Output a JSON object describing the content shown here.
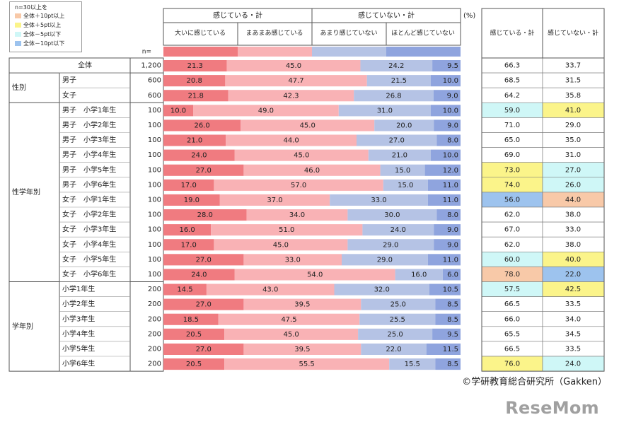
{
  "legend": {
    "title": "n=30以上を",
    "items": [
      {
        "label": "全体＋10pt以上",
        "color": "#f8c9a8"
      },
      {
        "label": "全体＋5pt以上",
        "color": "#fbf48a"
      },
      {
        "label": "全体－5pt以下",
        "color": "#cff7f7"
      },
      {
        "label": "全体－10pt以下",
        "color": "#9dc3ee"
      }
    ]
  },
  "header": {
    "feel_total": "感じている・計",
    "notfeel_total": "感じていない・計",
    "cat1": "大いに感じている",
    "cat2": "まあまあ感じている",
    "cat3": "あまり感じていない",
    "cat4": "ほとんど感じていない",
    "unit": "(%)",
    "n_label": "n=",
    "sum_feel": "感じている・計",
    "sum_notfeel": "感じていない・計"
  },
  "groups": [
    "性別",
    "性学年別",
    "学年別"
  ],
  "colors": {
    "cat1": "#f07b80",
    "cat2": "#f9b2b5",
    "cat3": "#b5c3e5",
    "cat4": "#8fa4de",
    "highlight_plus10": "#f8c9a8",
    "highlight_plus5": "#fbf48a",
    "highlight_minus5": "#cff7f7",
    "highlight_minus10": "#9dc3ee"
  },
  "chart_data": {
    "type": "bar",
    "stacked": true,
    "orientation": "horizontal",
    "unit": "(%)",
    "categories": [
      "全体",
      "男子",
      "女子",
      "男子　小学1年生",
      "男子　小学2年生",
      "男子　小学3年生",
      "男子　小学4年生",
      "男子　小学5年生",
      "男子　小学6年生",
      "女子　小学1年生",
      "女子　小学2年生",
      "女子　小学3年生",
      "女子　小学4年生",
      "女子　小学5年生",
      "女子　小学6年生",
      "小学1年生",
      "小学2年生",
      "小学3年生",
      "小学4年生",
      "小学5年生",
      "小学6年生"
    ],
    "n": [
      "1,200",
      "600",
      "600",
      "100",
      "100",
      "100",
      "100",
      "100",
      "100",
      "100",
      "100",
      "100",
      "100",
      "100",
      "100",
      "200",
      "200",
      "200",
      "200",
      "200",
      "200"
    ],
    "series": [
      {
        "name": "大いに感じている",
        "values": [
          21.3,
          20.8,
          21.8,
          10.0,
          26.0,
          21.0,
          24.0,
          27.0,
          17.0,
          19.0,
          28.0,
          16.0,
          17.0,
          27.0,
          24.0,
          14.5,
          27.0,
          18.5,
          20.5,
          27.0,
          20.5
        ]
      },
      {
        "name": "まあまあ感じている",
        "values": [
          45.0,
          47.7,
          42.3,
          49.0,
          45.0,
          44.0,
          45.0,
          46.0,
          57.0,
          37.0,
          34.0,
          51.0,
          45.0,
          33.0,
          54.0,
          43.0,
          39.5,
          47.5,
          45.0,
          39.5,
          55.5
        ]
      },
      {
        "name": "あまり感じていない",
        "values": [
          24.2,
          21.5,
          26.8,
          31.0,
          20.0,
          27.0,
          21.0,
          15.0,
          15.0,
          33.0,
          30.0,
          24.0,
          29.0,
          29.0,
          16.0,
          32.0,
          25.0,
          25.5,
          25.0,
          22.0,
          15.5
        ]
      },
      {
        "name": "ほとんど感じていない",
        "values": [
          9.5,
          10.0,
          9.0,
          10.0,
          9.0,
          8.0,
          10.0,
          12.0,
          11.0,
          11.0,
          8.0,
          9.0,
          9.0,
          11.0,
          6.0,
          10.5,
          8.5,
          8.5,
          9.5,
          11.5,
          8.5
        ]
      }
    ],
    "feel_total": [
      66.3,
      68.5,
      64.2,
      59.0,
      71.0,
      65.0,
      69.0,
      73.0,
      74.0,
      56.0,
      62.0,
      67.0,
      62.0,
      60.0,
      78.0,
      57.5,
      66.5,
      66.0,
      65.5,
      66.5,
      76.0
    ],
    "notfeel_total": [
      33.7,
      31.5,
      35.8,
      41.0,
      29.0,
      35.0,
      31.0,
      27.0,
      26.0,
      44.0,
      38.0,
      33.0,
      38.0,
      40.0,
      22.0,
      42.5,
      33.5,
      34.0,
      34.5,
      33.5,
      24.0
    ],
    "feel_highlight": [
      "",
      "",
      "",
      "minus5",
      "",
      "",
      "",
      "plus5",
      "plus5",
      "minus10",
      "",
      "",
      "",
      "minus5",
      "plus10",
      "minus5",
      "",
      "",
      "",
      "",
      "plus5"
    ],
    "notfeel_highlight": [
      "",
      "",
      "",
      "plus5",
      "",
      "",
      "",
      "minus5",
      "minus5",
      "plus10",
      "",
      "",
      "",
      "plus5",
      "minus10",
      "plus5",
      "",
      "",
      "",
      "",
      "minus5"
    ],
    "xlim": [
      0,
      100
    ]
  },
  "footer": {
    "copyright": "©学研教育総合研究所（Gakken）",
    "brand": "ReseMom"
  }
}
